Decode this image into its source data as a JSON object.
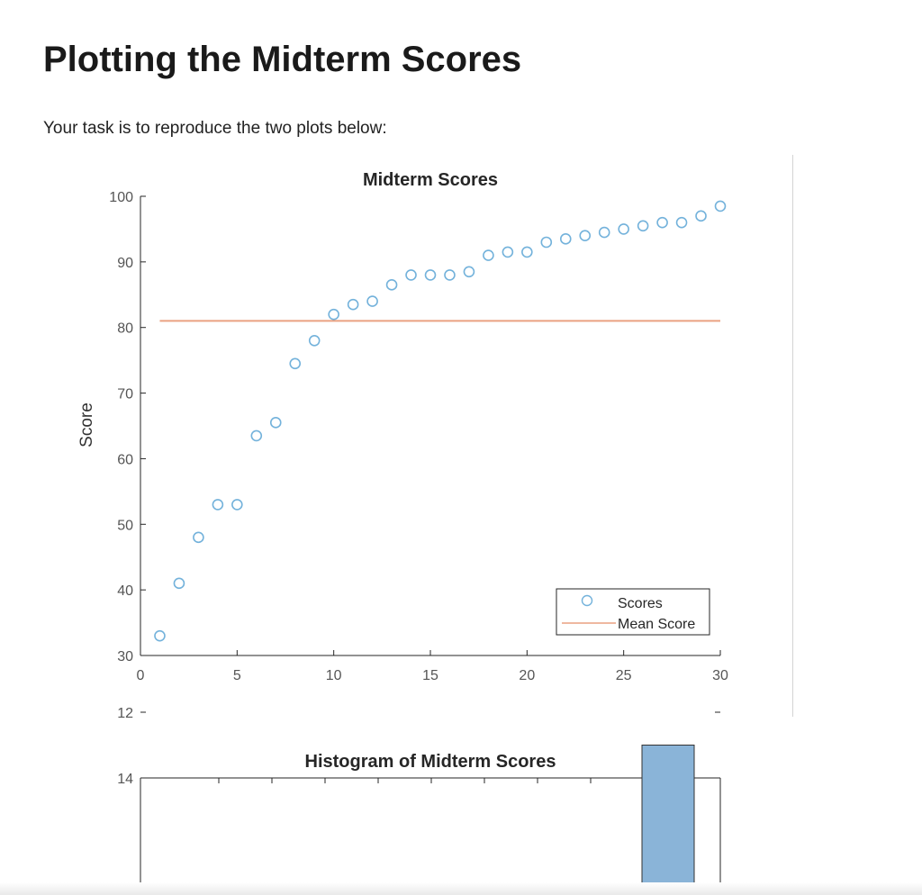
{
  "page": {
    "title": "Plotting the Midterm Scores",
    "task_text": "Your task is to reproduce the two plots below:"
  },
  "colors": {
    "scores_marker": "#0072BD",
    "mean_line": "#D95319",
    "histogram_bar": "#8ab4d8"
  },
  "chart_data": [
    {
      "type": "scatter",
      "title": "Midterm Scores",
      "xlabel": "",
      "ylabel": "Score",
      "xlim": [
        0,
        30
      ],
      "ylim": [
        30,
        100
      ],
      "xticks": [
        0,
        5,
        10,
        15,
        20,
        25,
        30
      ],
      "yticks": [
        30,
        40,
        50,
        60,
        70,
        80,
        90,
        100
      ],
      "grid": false,
      "legend_position": "bottom-right",
      "series": [
        {
          "name": "Scores",
          "x": [
            1,
            2,
            3,
            4,
            5,
            6,
            7,
            8,
            9,
            10,
            11,
            12,
            13,
            14,
            15,
            16,
            17,
            18,
            19,
            20,
            21,
            22,
            23,
            24,
            25,
            26,
            27,
            28,
            29,
            30
          ],
          "y": [
            33,
            41,
            48,
            53,
            53,
            63.5,
            65.5,
            74.5,
            78,
            82,
            83.5,
            84,
            86.5,
            88,
            88,
            88,
            88.5,
            91,
            91.5,
            91.5,
            93,
            93.5,
            94,
            94.5,
            95,
            95.5,
            96,
            96,
            97,
            98.5
          ]
        },
        {
          "name": "Mean Score",
          "x": [
            1,
            30
          ],
          "y": [
            81,
            81
          ]
        }
      ]
    },
    {
      "type": "bar",
      "title": "Histogram of Midterm Scores",
      "yticks": [
        12,
        14
      ],
      "ylim_visible": [
        10.2,
        14
      ],
      "bars": [
        {
          "value": 13
        }
      ]
    }
  ]
}
